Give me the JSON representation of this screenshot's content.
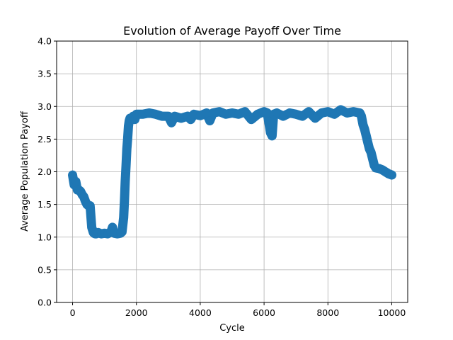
{
  "chart_data": {
    "type": "scatter",
    "title": "Evolution of Average Payoff Over Time",
    "xlabel": "Cycle",
    "ylabel": "Average Population Payoff",
    "xlim": [
      -500,
      10500
    ],
    "ylim": [
      0.0,
      4.0
    ],
    "grid": true,
    "x_ticks": [
      0,
      2000,
      4000,
      6000,
      8000,
      10000
    ],
    "x_tick_labels": [
      "0",
      "2000",
      "4000",
      "6000",
      "8000",
      "10000"
    ],
    "y_ticks": [
      0.0,
      0.5,
      1.0,
      1.5,
      2.0,
      2.5,
      3.0,
      3.5,
      4.0
    ],
    "y_tick_labels": [
      "0.0",
      "0.5",
      "1.0",
      "1.5",
      "2.0",
      "2.5",
      "3.0",
      "3.5",
      "4.0"
    ],
    "series": [
      {
        "name": "Average Population Payoff",
        "color": "#1f77b4",
        "x": [
          0,
          50,
          100,
          150,
          200,
          250,
          300,
          350,
          400,
          450,
          500,
          550,
          600,
          650,
          700,
          750,
          800,
          900,
          1000,
          1100,
          1200,
          1250,
          1300,
          1400,
          1500,
          1550,
          1600,
          1625,
          1650,
          1675,
          1700,
          1725,
          1750,
          1775,
          1800,
          1850,
          1900,
          1950,
          2000,
          2200,
          2400,
          2600,
          2800,
          3000,
          3100,
          3200,
          3400,
          3600,
          3700,
          3800,
          4000,
          4200,
          4300,
          4400,
          4600,
          4800,
          5000,
          5200,
          5400,
          5600,
          5800,
          6000,
          6100,
          6200,
          6250,
          6300,
          6400,
          6600,
          6800,
          7000,
          7200,
          7400,
          7600,
          7800,
          8000,
          8200,
          8400,
          8600,
          8800,
          9000,
          9050,
          9100,
          9150,
          9200,
          9250,
          9300,
          9350,
          9400,
          9450,
          9500,
          9600,
          9700,
          9800,
          9900,
          10000
        ],
        "values": [
          1.95,
          1.8,
          1.85,
          1.72,
          1.72,
          1.7,
          1.65,
          1.62,
          1.55,
          1.5,
          1.48,
          1.48,
          1.15,
          1.07,
          1.05,
          1.05,
          1.07,
          1.05,
          1.06,
          1.05,
          1.08,
          1.15,
          1.06,
          1.05,
          1.06,
          1.08,
          1.3,
          1.55,
          1.85,
          2.1,
          2.35,
          2.5,
          2.7,
          2.78,
          2.82,
          2.82,
          2.85,
          2.8,
          2.88,
          2.88,
          2.9,
          2.88,
          2.85,
          2.85,
          2.75,
          2.85,
          2.82,
          2.85,
          2.8,
          2.88,
          2.86,
          2.9,
          2.78,
          2.9,
          2.92,
          2.88,
          2.9,
          2.88,
          2.92,
          2.8,
          2.88,
          2.92,
          2.9,
          2.6,
          2.55,
          2.88,
          2.9,
          2.85,
          2.9,
          2.88,
          2.85,
          2.92,
          2.82,
          2.9,
          2.92,
          2.88,
          2.95,
          2.9,
          2.92,
          2.9,
          2.85,
          2.72,
          2.65,
          2.55,
          2.45,
          2.35,
          2.3,
          2.2,
          2.1,
          2.06,
          2.05,
          2.03,
          2.0,
          1.97,
          1.95
        ]
      }
    ]
  }
}
